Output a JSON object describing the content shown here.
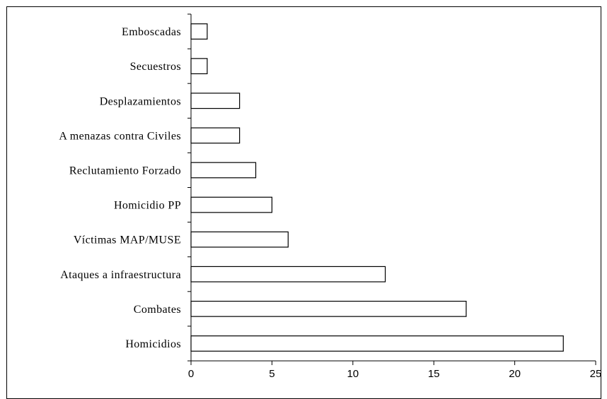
{
  "chart_data": {
    "type": "bar",
    "orientation": "horizontal",
    "categories": [
      "Homicidios",
      "Combates",
      "Ataques  a infraestructura",
      "Víctimas MAP/MUSE",
      "Homicidio PP",
      "Reclutamiento Forzado",
      "A menazas contra Civiles",
      "Desplazamientos",
      "Secuestros",
      "Emboscadas"
    ],
    "values": [
      23,
      17,
      12,
      6,
      5,
      4,
      3,
      3,
      1,
      1
    ],
    "xlim": [
      0,
      25
    ],
    "xticks": [
      0,
      5,
      10,
      15,
      20,
      25
    ],
    "title": "",
    "xlabel": "",
    "ylabel": "",
    "grid": false,
    "legend": "none",
    "bar_fill": "#ffffff",
    "bar_stroke": "#000000"
  }
}
